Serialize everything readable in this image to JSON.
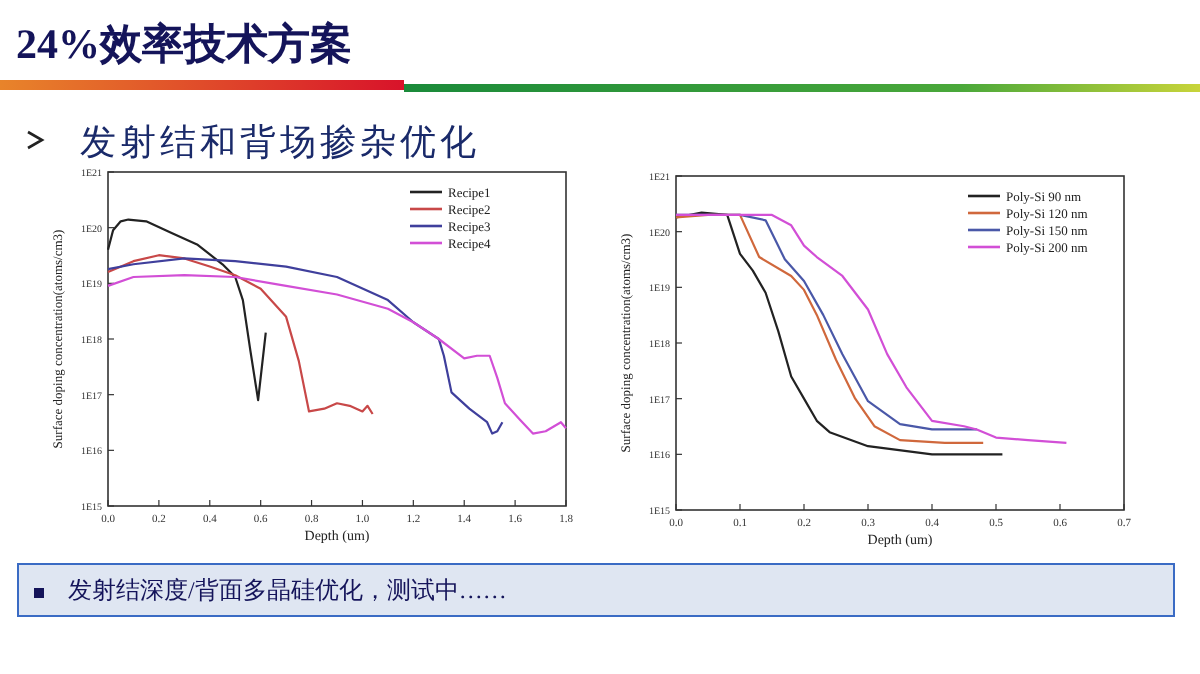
{
  "chart_data": [
    {
      "type": "line",
      "title": "24%效率技术方案",
      "subtitle": "发射结和背场掺杂优化",
      "annotations": [
        "发射结深度/背面多晶硅优化，测试中……"
      ],
      "xlabel": "Depth (um)",
      "ylabel": "Surface doping concentration(atoms/cm3)",
      "log": "y",
      "legend": "top right",
      "xlim": [
        0,
        1.8
      ],
      "ylim": [
        1000000000000000.0,
        1e+21
      ],
      "xticks": [
        {
          "value": 0,
          "label": "0.0"
        },
        {
          "value": 0.2,
          "label": "0.2"
        },
        {
          "value": 0.4,
          "label": "0.4"
        },
        {
          "value": 0.6,
          "label": "0.6"
        },
        {
          "value": 0.8,
          "label": "0.8"
        },
        {
          "value": 1,
          "label": "1.0"
        },
        {
          "value": 1.2,
          "label": "1.2"
        },
        {
          "value": 1.4,
          "label": "1.4"
        },
        {
          "value": 1.6,
          "label": "1.6"
        },
        {
          "value": 1.8,
          "label": "1.8"
        }
      ],
      "yticks": [
        {
          "value": 1000000000000000.0,
          "label": "1E15"
        },
        {
          "value": 1e+16,
          "label": "1E16"
        },
        {
          "value": 1e+17,
          "label": "1E17"
        },
        {
          "value": 1e+18,
          "label": "1E18"
        },
        {
          "value": 1e+19,
          "label": "1E19"
        },
        {
          "value": 1e+20,
          "label": "1E20"
        },
        {
          "value": 1e+21,
          "label": "1E21"
        }
      ],
      "series": [
        {
          "name": "Recipe1",
          "color": "#222222",
          "x": [
            0,
            0.02,
            0.05,
            0.08,
            0.15,
            0.25,
            0.35,
            0.45,
            0.5,
            0.53,
            0.56,
            0.59,
            0.62
          ],
          "values": [
            4e+19,
            9e+19,
            1.3e+20,
            1.4e+20,
            1.3e+20,
            8e+19,
            5e+19,
            2.2e+19,
            1.3e+19,
            5e+18,
            6e+17,
            8e+16,
            1.3e+18
          ]
        },
        {
          "name": "Recipe2",
          "color": "#c84848",
          "x": [
            0,
            0.1,
            0.2,
            0.3,
            0.4,
            0.5,
            0.6,
            0.7,
            0.75,
            0.79,
            0.85,
            0.9,
            0.95,
            1.0,
            1.02,
            1.04
          ],
          "values": [
            1.6e+19,
            2.5e+19,
            3.2e+19,
            2.8e+19,
            2e+19,
            1.4e+19,
            8e+18,
            2.5e+18,
            4e+17,
            5e+16,
            5.6e+16,
            7e+16,
            6.3e+16,
            5e+16,
            6.3e+16,
            4.5e+16
          ]
        },
        {
          "name": "Recipe3",
          "color": "#3f3f9c",
          "x": [
            0,
            0.1,
            0.3,
            0.5,
            0.7,
            0.9,
            1.1,
            1.2,
            1.3,
            1.32,
            1.35,
            1.42,
            1.49,
            1.51,
            1.53,
            1.55
          ],
          "values": [
            1.8e+19,
            2.2e+19,
            2.8e+19,
            2.5e+19,
            2e+19,
            1.3e+19,
            5e+18,
            2e+18,
            1e+18,
            5e+17,
            1.1e+17,
            5.6e+16,
            3.2e+16,
            2e+16,
            2.2e+16,
            3.2e+16
          ]
        },
        {
          "name": "Recipe4",
          "color": "#d24fd6",
          "x": [
            0,
            0.1,
            0.3,
            0.5,
            0.7,
            0.9,
            1.1,
            1.2,
            1.3,
            1.4,
            1.45,
            1.5,
            1.53,
            1.56,
            1.62,
            1.67,
            1.72,
            1.78,
            1.8
          ],
          "values": [
            9e+18,
            1.3e+19,
            1.4e+19,
            1.3e+19,
            9e+18,
            6.3e+18,
            3.5e+18,
            2e+18,
            1e+18,
            4.5e+17,
            5e+17,
            5e+17,
            2e+17,
            7e+16,
            3.5e+16,
            2e+16,
            2.2e+16,
            3.2e+16,
            2.5e+16
          ]
        }
      ]
    },
    {
      "type": "line",
      "xlabel": "Depth (um)",
      "ylabel": "Surface doping concentration(atoms/cm3)",
      "log": "y",
      "legend": "top right",
      "xlim": [
        0,
        0.7
      ],
      "ylim": [
        1000000000000000.0,
        1e+21
      ],
      "xticks": [
        {
          "value": 0,
          "label": "0.0"
        },
        {
          "value": 0.1,
          "label": "0.1"
        },
        {
          "value": 0.2,
          "label": "0.2"
        },
        {
          "value": 0.3,
          "label": "0.3"
        },
        {
          "value": 0.4,
          "label": "0.4"
        },
        {
          "value": 0.5,
          "label": "0.5"
        },
        {
          "value": 0.6,
          "label": "0.6"
        },
        {
          "value": 0.7,
          "label": "0.7"
        }
      ],
      "yticks": [
        {
          "value": 1000000000000000.0,
          "label": "1E15"
        },
        {
          "value": 1e+16,
          "label": "1E16"
        },
        {
          "value": 1e+17,
          "label": "1E17"
        },
        {
          "value": 1e+18,
          "label": "1E18"
        },
        {
          "value": 1e+19,
          "label": "1E19"
        },
        {
          "value": 1e+20,
          "label": "1E20"
        },
        {
          "value": 1e+21,
          "label": "1E21"
        }
      ],
      "series": [
        {
          "name": "Poly-Si 90 nm",
          "color": "#222222",
          "x": [
            0,
            0.04,
            0.08,
            0.1,
            0.12,
            0.14,
            0.16,
            0.18,
            0.2,
            0.22,
            0.24,
            0.3,
            0.4,
            0.51
          ],
          "values": [
            1.8e+20,
            2.2e+20,
            2e+20,
            4e+19,
            2e+19,
            8e+18,
            1.6e+18,
            2.5e+17,
            1e+17,
            4e+16,
            2.5e+16,
            1.4e+16,
            1e+16,
            1e+16
          ]
        },
        {
          "name": "Poly-Si 120 nm",
          "color": "#d0683c",
          "x": [
            0,
            0.05,
            0.1,
            0.13,
            0.18,
            0.2,
            0.22,
            0.25,
            0.28,
            0.31,
            0.35,
            0.42,
            0.48
          ],
          "values": [
            1.8e+20,
            2e+20,
            2e+20,
            3.5e+19,
            1.6e+19,
            9e+18,
            3.2e+18,
            5e+17,
            1e+17,
            3.2e+16,
            1.8e+16,
            1.6e+16,
            1.6e+16
          ]
        },
        {
          "name": "Poly-Si 150 nm",
          "color": "#4a58a8",
          "x": [
            0,
            0.1,
            0.14,
            0.17,
            0.2,
            0.23,
            0.26,
            0.3,
            0.35,
            0.4,
            0.47
          ],
          "values": [
            2e+20,
            2e+20,
            1.6e+20,
            3.2e+19,
            1.3e+19,
            3.2e+18,
            6.3e+17,
            9e+16,
            3.5e+16,
            2.8e+16,
            2.8e+16
          ]
        },
        {
          "name": "Poly-Si 200 nm",
          "color": "#d24fd6",
          "x": [
            0,
            0.1,
            0.15,
            0.18,
            0.2,
            0.22,
            0.26,
            0.3,
            0.33,
            0.36,
            0.4,
            0.45,
            0.47,
            0.5,
            0.55,
            0.61
          ],
          "values": [
            2e+20,
            2e+20,
            2e+20,
            1.3e+20,
            5.6e+19,
            3.5e+19,
            1.6e+19,
            4e+18,
            6.3e+17,
            1.6e+17,
            4e+16,
            3.2e+16,
            2.8e+16,
            2e+16,
            1.8e+16,
            1.6e+16
          ]
        }
      ]
    }
  ]
}
